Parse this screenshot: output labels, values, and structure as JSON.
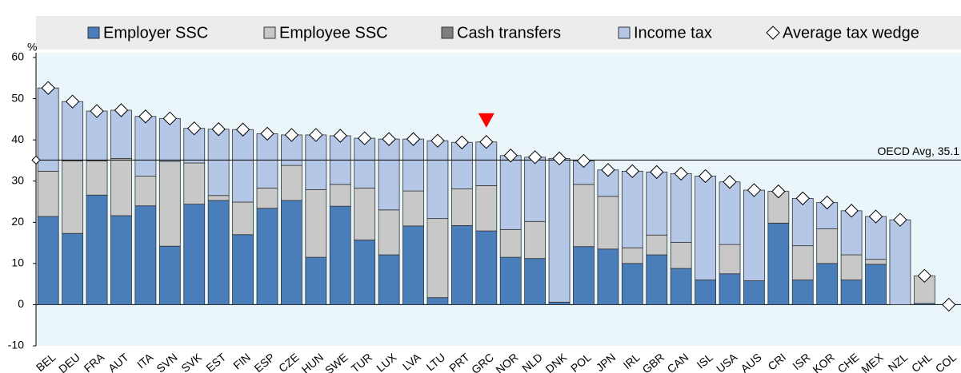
{
  "chart_data": {
    "type": "stacked-bar",
    "y_unit": "%",
    "categories": [
      "BEL",
      "DEU",
      "FRA",
      "AUT",
      "ITA",
      "SVN",
      "SVK",
      "EST",
      "FIN",
      "ESP",
      "CZE",
      "HUN",
      "SWE",
      "TUR",
      "LUX",
      "LVA",
      "LTU",
      "PRT",
      "GRC",
      "NOR",
      "NLD",
      "DNK",
      "POL",
      "JPN",
      "IRL",
      "GBR",
      "CAN",
      "ISL",
      "USA",
      "AUS",
      "CRI",
      "ISR",
      "KOR",
      "CHE",
      "MEX",
      "NZL",
      "CHL",
      "COL"
    ],
    "series": [
      {
        "name": "Employer SSC",
        "color": "#4a7ebb",
        "values": [
          21.4,
          17.3,
          26.6,
          21.6,
          24.0,
          14.2,
          24.4,
          25.3,
          17.0,
          23.4,
          25.3,
          11.5,
          23.9,
          15.7,
          12.1,
          19.1,
          1.7,
          19.2,
          17.9,
          11.5,
          11.2,
          0.6,
          14.1,
          13.5,
          10.0,
          12.1,
          8.8,
          6.0,
          7.5,
          5.8,
          19.8,
          6.0,
          10.0,
          6.0,
          9.8,
          0,
          0.3,
          0
        ]
      },
      {
        "name": "Employee SSC",
        "color": "#c8c8c8",
        "values": [
          11.0,
          17.6,
          8.3,
          13.9,
          7.2,
          20.6,
          10.0,
          1.2,
          7.9,
          4.9,
          8.5,
          16.4,
          5.3,
          12.6,
          10.9,
          8.5,
          19.2,
          8.9,
          11.0,
          6.7,
          9.0,
          0,
          15.1,
          12.8,
          3.8,
          4.8,
          6.3,
          0,
          7.1,
          0,
          7.7,
          8.3,
          8.4,
          6.1,
          1.2,
          0,
          6.7,
          0
        ]
      },
      {
        "name": "Cash transfers",
        "color": "#7f7f7f",
        "values": [
          0,
          0,
          0,
          0,
          0,
          0,
          0,
          0,
          0,
          0,
          0,
          0,
          0,
          0,
          0,
          0,
          0,
          0,
          0,
          0,
          0,
          0,
          0,
          0,
          0,
          0,
          0,
          0,
          0,
          0,
          0,
          0,
          0,
          0,
          0,
          0,
          0,
          0
        ]
      },
      {
        "name": "Income tax",
        "color": "#b4c7e7",
        "values": [
          20.2,
          14.4,
          12.1,
          11.7,
          14.5,
          10.4,
          8.4,
          16.1,
          17.6,
          13.2,
          7.4,
          13.3,
          11.8,
          12.1,
          17.2,
          12.6,
          18.9,
          11.3,
          10.6,
          18.0,
          15.6,
          34.9,
          5.7,
          6.4,
          18.6,
          15.3,
          16.7,
          25.2,
          15.2,
          22.0,
          0,
          11.5,
          6.4,
          10.7,
          10.4,
          20.6,
          0,
          0
        ]
      }
    ],
    "markers": {
      "name": "Average tax wedge",
      "values": [
        52.6,
        49.3,
        47.0,
        47.2,
        45.7,
        45.2,
        42.8,
        42.6,
        42.5,
        41.5,
        41.2,
        41.2,
        41.0,
        40.4,
        40.2,
        40.2,
        39.8,
        39.4,
        39.5,
        36.2,
        35.8,
        35.5,
        34.9,
        32.7,
        32.4,
        32.2,
        31.8,
        31.2,
        29.8,
        27.8,
        27.5,
        25.8,
        24.8,
        22.8,
        21.4,
        20.6,
        7.0,
        0
      ]
    },
    "oecd_avg": {
      "value": 35.1,
      "label": "OECD Avg, 35.1"
    },
    "highlight_category": "GRC",
    "ylim": [
      -10,
      60
    ],
    "yticks": [
      -10,
      0,
      10,
      20,
      30,
      40,
      50,
      60
    ]
  }
}
